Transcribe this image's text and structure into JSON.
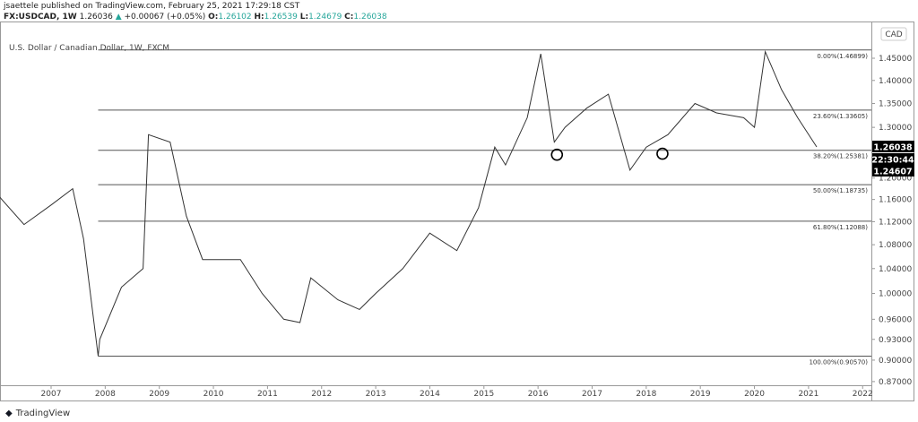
{
  "header": {
    "publisher_line": "jsaettele published on TradingView.com, February 25, 2021 17:29:18 CST",
    "symbol": "FX:USDCAD, 1W",
    "last": "1.26036",
    "change": "+0.00067 (+0.05%)",
    "o_label": "O:",
    "o": "1.26102",
    "h_label": "H:",
    "h": "1.26539",
    "l_label": "L:",
    "l": "1.24679",
    "c_label": "C:",
    "c": "1.26038",
    "up_icon": "triangle-up-icon"
  },
  "legend_title": "U.S. Dollar / Canadian Dollar, 1W, FXCM",
  "currency_badge": "CAD",
  "footer": {
    "brand": "TradingView"
  },
  "colors": {
    "line": "#333333",
    "up": "#26a69a",
    "tag_bg": "#000000"
  },
  "chart_data": {
    "type": "line",
    "y_scale": "log",
    "ylim": [
      0.86,
      1.5
    ],
    "xlim": [
      2006.0,
      2022.2
    ],
    "grid": false,
    "y_ticks": [
      "1.45000",
      "1.40000",
      "1.35000",
      "1.30000",
      "1.20000",
      "1.16000",
      "1.12000",
      "1.08000",
      "1.04000",
      "1.00000",
      "0.96000",
      "0.93000",
      "0.90000",
      "0.87000"
    ],
    "x_ticks": [
      "2007",
      "2008",
      "2009",
      "2010",
      "2011",
      "2012",
      "2013",
      "2014",
      "2015",
      "2016",
      "2017",
      "2018",
      "2019",
      "2020",
      "2021",
      "2022"
    ],
    "series": [
      {
        "x": [
          2006.0,
          2006.5,
          2007.0,
          2007.4,
          2007.6,
          2007.87,
          2007.9,
          2008.3,
          2008.7,
          2008.8,
          2009.2,
          2009.5,
          2009.8,
          2010.5,
          2010.9,
          2011.3,
          2011.6,
          2011.8,
          2012.3,
          2012.7,
          2013.0,
          2013.5,
          2014.0,
          2014.5,
          2014.9,
          2015.2,
          2015.4,
          2015.8,
          2016.05,
          2016.3,
          2016.5,
          2016.9,
          2017.3,
          2017.7,
          2018.0,
          2018.4,
          2018.9,
          2019.3,
          2019.8,
          2020.0,
          2020.2,
          2020.5,
          2020.8,
          2021.15
        ],
        "y": [
          1.17,
          1.115,
          1.15,
          1.18,
          1.09,
          0.9057,
          0.93,
          1.01,
          1.04,
          1.285,
          1.27,
          1.13,
          1.055,
          1.055,
          1.0,
          0.96,
          0.955,
          1.025,
          0.99,
          0.975,
          1.0,
          1.04,
          1.1,
          1.07,
          1.145,
          1.26,
          1.225,
          1.32,
          1.46,
          1.27,
          1.3,
          1.34,
          1.37,
          1.215,
          1.26,
          1.285,
          1.35,
          1.33,
          1.32,
          1.3,
          1.465,
          1.38,
          1.32,
          1.26038
        ]
      }
    ],
    "fib_levels": [
      {
        "label": "0.00%(1.46899)",
        "value": 1.46899
      },
      {
        "label": "23.60%(1.33605)",
        "value": 1.33605
      },
      {
        "label": "38.20%(1.25381)",
        "value": 1.25381
      },
      {
        "label": "50.00%(1.18735)",
        "value": 1.18735
      },
      {
        "label": "61.80%(1.12088)",
        "value": 1.12088
      },
      {
        "label": "100.00%(0.90570)",
        "value": 0.9057
      }
    ],
    "fib_start_x": 2007.87,
    "annotations": [
      {
        "type": "circle",
        "x": 2016.35,
        "y": 1.245
      },
      {
        "type": "circle",
        "x": 2018.3,
        "y": 1.247
      }
    ],
    "price_tags": [
      {
        "label": "1.26038",
        "value": 1.26038
      },
      {
        "label": "22:30:44",
        "value": null
      },
      {
        "label": "1.24607",
        "value": 1.24607
      }
    ]
  }
}
